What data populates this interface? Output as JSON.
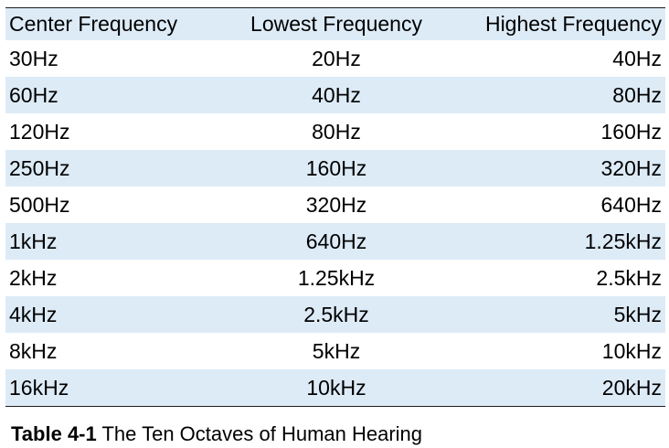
{
  "table": {
    "headers": [
      "Center Frequency",
      "Lowest Frequency",
      "Highest Frequency"
    ],
    "rows": [
      [
        "30Hz",
        "20Hz",
        "40Hz"
      ],
      [
        "60Hz",
        "40Hz",
        "80Hz"
      ],
      [
        "120Hz",
        "80Hz",
        "160Hz"
      ],
      [
        "250Hz",
        "160Hz",
        "320Hz"
      ],
      [
        "500Hz",
        "320Hz",
        "640Hz"
      ],
      [
        "1kHz",
        "640Hz",
        "1.25kHz"
      ],
      [
        "2kHz",
        "1.25kHz",
        "2.5kHz"
      ],
      [
        "4kHz",
        "2.5kHz",
        "5kHz"
      ],
      [
        "8kHz",
        "5kHz",
        "10kHz"
      ],
      [
        "16kHz",
        "10kHz",
        "20kHz"
      ]
    ],
    "band_color": "#ddebf7"
  },
  "caption": {
    "label": "Table 4-1",
    "text": " The Ten Octaves of Human Hearing"
  }
}
